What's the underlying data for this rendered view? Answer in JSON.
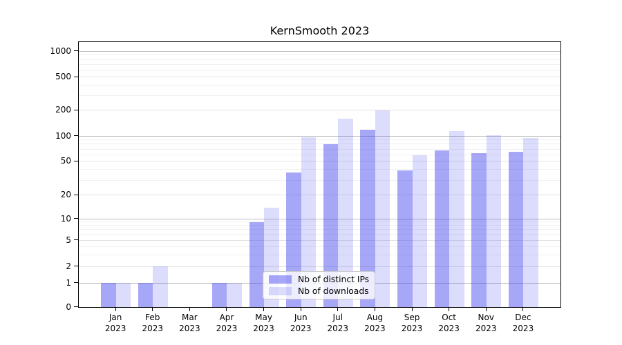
{
  "title": "KernSmooth 2023",
  "chart_data": {
    "type": "bar",
    "title": "KernSmooth 2023",
    "categories": [
      "Jan 2023",
      "Feb 2023",
      "Mar 2023",
      "Apr 2023",
      "May 2023",
      "Jun 2023",
      "Jul 2023",
      "Aug 2023",
      "Sep 2023",
      "Oct 2023",
      "Nov 2023",
      "Dec 2023"
    ],
    "series": [
      {
        "name": "Nb of distinct IPs",
        "values": [
          1,
          1,
          0,
          1,
          9,
          37,
          80,
          118,
          39,
          67,
          63,
          65
        ]
      },
      {
        "name": "Nb of downloads",
        "values": [
          1,
          2,
          0,
          1,
          14,
          97,
          160,
          199,
          59,
          115,
          102,
          94
        ]
      }
    ],
    "yscale": "pseudo-log",
    "ylim": [
      0,
      1270
    ],
    "y_ticks": [
      0,
      1,
      2,
      5,
      10,
      20,
      50,
      100,
      200,
      500,
      1000
    ],
    "scale_anchors": [
      [
        0,
        0
      ],
      [
        1,
        0.0911
      ],
      [
        2,
        0.1536
      ],
      [
        5,
        0.2526
      ],
      [
        10,
        0.3333
      ],
      [
        20,
        0.4219
      ],
      [
        50,
        0.5495
      ],
      [
        100,
        0.6458
      ],
      [
        200,
        0.7422
      ],
      [
        500,
        0.8672
      ],
      [
        1000,
        0.9661
      ]
    ],
    "grid": {
      "dark": [
        1,
        10,
        100,
        1000
      ],
      "light": [
        2,
        5,
        20,
        50,
        200,
        500
      ],
      "minor": [
        3,
        4,
        6,
        7,
        8,
        9,
        30,
        40,
        60,
        70,
        80,
        90,
        300,
        400,
        600,
        700,
        800,
        900
      ]
    },
    "legend_position": "inside-bottom-center",
    "grid_on": true
  },
  "colors": {
    "bar_ips": "rgba(60,60,240,0.45)",
    "bar_downloads": "rgba(60,60,240,0.18)",
    "grid_dark": "#bbbbbb",
    "grid_light": "#e3e3e3",
    "grid_minor": "#f1f1f1",
    "axis": "#000000",
    "legend_border": "#cccccc"
  }
}
